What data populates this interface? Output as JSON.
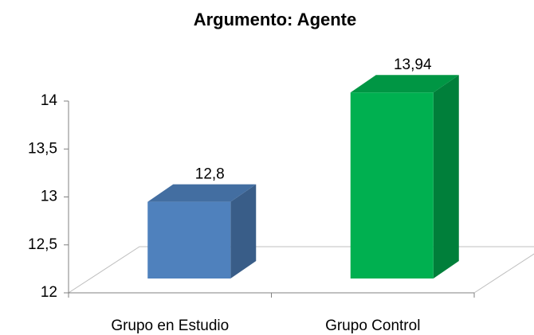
{
  "chart_data": {
    "type": "bar3d",
    "title": "Argumento: Agente",
    "categories": [
      "Grupo en Estudio",
      "Grupo Control"
    ],
    "values": [
      12.8,
      13.94
    ],
    "value_labels": [
      "12,8",
      "13,94"
    ],
    "colors": [
      "#4f81bd",
      "#00b050"
    ],
    "ylim": [
      12,
      14
    ],
    "yticks": [
      12,
      {
        "value": 12.5,
        "label": "12,5"
      },
      13,
      {
        "value": 13.5,
        "label": "13,5"
      },
      14
    ],
    "grid": false
  }
}
